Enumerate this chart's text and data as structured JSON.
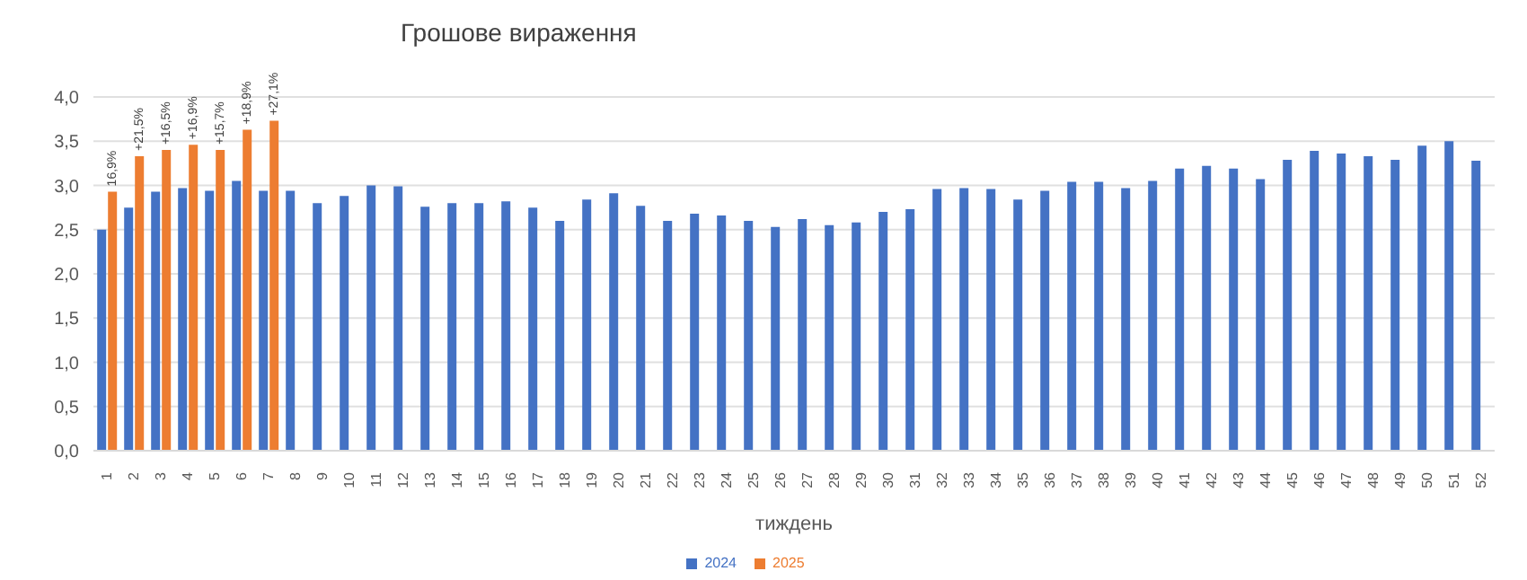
{
  "chart_data": {
    "type": "bar",
    "title": "Грошове вираження",
    "xlabel": "тиждень",
    "categories": [
      "1",
      "2",
      "3",
      "4",
      "5",
      "6",
      "7",
      "8",
      "9",
      "10",
      "11",
      "12",
      "13",
      "14",
      "15",
      "16",
      "17",
      "18",
      "19",
      "20",
      "21",
      "22",
      "23",
      "24",
      "25",
      "26",
      "27",
      "28",
      "29",
      "30",
      "31",
      "32",
      "33",
      "34",
      "35",
      "36",
      "37",
      "38",
      "39",
      "40",
      "41",
      "42",
      "43",
      "44",
      "45",
      "46",
      "47",
      "48",
      "49",
      "50",
      "51",
      "52"
    ],
    "series": [
      {
        "name": "2024",
        "color": "#4472c4",
        "values": [
          2.5,
          2.75,
          2.93,
          2.97,
          2.94,
          3.05,
          2.94,
          2.94,
          2.8,
          2.88,
          3.0,
          2.99,
          2.76,
          2.8,
          2.8,
          2.82,
          2.75,
          2.6,
          2.84,
          2.91,
          2.77,
          2.6,
          2.68,
          2.66,
          2.6,
          2.53,
          2.62,
          2.55,
          2.58,
          2.7,
          2.73,
          2.96,
          2.97,
          2.96,
          2.84,
          2.94,
          3.04,
          3.04,
          2.97,
          3.05,
          3.19,
          3.22,
          3.19,
          3.07,
          3.29,
          3.39,
          3.36,
          3.33,
          3.29,
          3.45,
          3.5,
          3.28
        ]
      },
      {
        "name": "2025",
        "color": "#ed7d31",
        "values": [
          2.93,
          3.33,
          3.4,
          3.46,
          3.4,
          3.63,
          3.73,
          null,
          null,
          null,
          null,
          null,
          null,
          null,
          null,
          null,
          null,
          null,
          null,
          null,
          null,
          null,
          null,
          null,
          null,
          null,
          null,
          null,
          null,
          null,
          null,
          null,
          null,
          null,
          null,
          null,
          null,
          null,
          null,
          null,
          null,
          null,
          null,
          null,
          null,
          null,
          null,
          null,
          null,
          null,
          null,
          null
        ]
      }
    ],
    "annotations": [
      {
        "text": "16,9%",
        "x": "1",
        "y": 2.93
      },
      {
        "text": "+21,5%",
        "x": "2",
        "y": 3.33
      },
      {
        "text": "+16,5%",
        "x": "3",
        "y": 3.4
      },
      {
        "text": "+16,9%",
        "x": "4",
        "y": 3.46
      },
      {
        "text": "+15,7%",
        "x": "5",
        "y": 3.4
      },
      {
        "text": "+18,9%",
        "x": "6",
        "y": 3.63
      },
      {
        "text": "+27,1%",
        "x": "7",
        "y": 3.73
      }
    ],
    "ylim": [
      0,
      4
    ],
    "yticks": [
      {
        "value": 0,
        "label": "0,0"
      },
      {
        "value": 0.5,
        "label": "0,5"
      },
      {
        "value": 1,
        "label": "1,0"
      },
      {
        "value": 1.5,
        "label": "1,5"
      },
      {
        "value": 2,
        "label": "2,0"
      },
      {
        "value": 2.5,
        "label": "2,5"
      },
      {
        "value": 3,
        "label": "3,0"
      },
      {
        "value": 3.5,
        "label": "3,5"
      },
      {
        "value": 4,
        "label": "4,0"
      }
    ],
    "grid": "y",
    "legend": "bottom"
  }
}
